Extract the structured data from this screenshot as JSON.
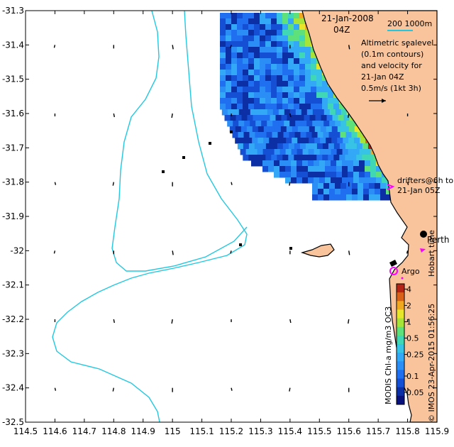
{
  "map": {
    "date": "21-Jan-2008",
    "time": "04Z",
    "scale_label": "200  1000m",
    "legend_lines": [
      "Altimetric sealevel",
      "(0.1m contours)",
      "and velocity for",
      "21-Jan 04Z",
      "0.5m/s (1kt 3h)"
    ],
    "drifters_lines": [
      "drifters@6h to",
      "21-Jan 05Z"
    ],
    "perth_label": "Perth",
    "argo_label": "Argo",
    "hobart_label": "Hobart time",
    "credit": "© IMOS 23-Apr-2015 01:56:25",
    "colorbar_title": "MODIS Chl-a mg/m3 OC3",
    "colorbar_ticks": [
      "4",
      "2",
      "1",
      "0.5",
      "0.25",
      "0.1",
      "0.05"
    ],
    "colors": {
      "land": "#f9c49c",
      "isobath": "#22c8e0",
      "drifter": "#ff00ff",
      "argo": "#ff00ff",
      "coast": "#000000"
    }
  },
  "chart_data": {
    "type": "heatmap",
    "xlim": [
      114.5,
      115.9
    ],
    "ylim": [
      -32.5,
      -31.3
    ],
    "x_ticks": [
      "114.5",
      "114.6",
      "114.7",
      "114.8",
      "114.9",
      "115",
      "115.1",
      "115.2",
      "115.3",
      "115.4",
      "115.5",
      "115.6",
      "115.7",
      "115.8",
      "115.9"
    ],
    "y_ticks": [
      "-31.3",
      "-31.4",
      "-31.5",
      "-31.6",
      "-31.7",
      "-31.8",
      "-31.9",
      "-32",
      "-32.1",
      "-32.2",
      "-32.3",
      "-32.4",
      "-32.5"
    ],
    "velocity_arrow_grid": {
      "lon": [
        114.6,
        114.8,
        115.0,
        115.2,
        115.4,
        115.6,
        115.8
      ],
      "lat": [
        -31.4,
        -31.6,
        -31.8,
        -32.0,
        -32.2,
        -32.4
      ]
    },
    "perth": {
      "lon": 115.86,
      "lat": -31.95
    },
    "argo_float": {
      "lon": 115.77,
      "lat": -32.07
    },
    "chl_colorbar": {
      "min": 0.03,
      "max": 5,
      "scale": "log"
    }
  }
}
